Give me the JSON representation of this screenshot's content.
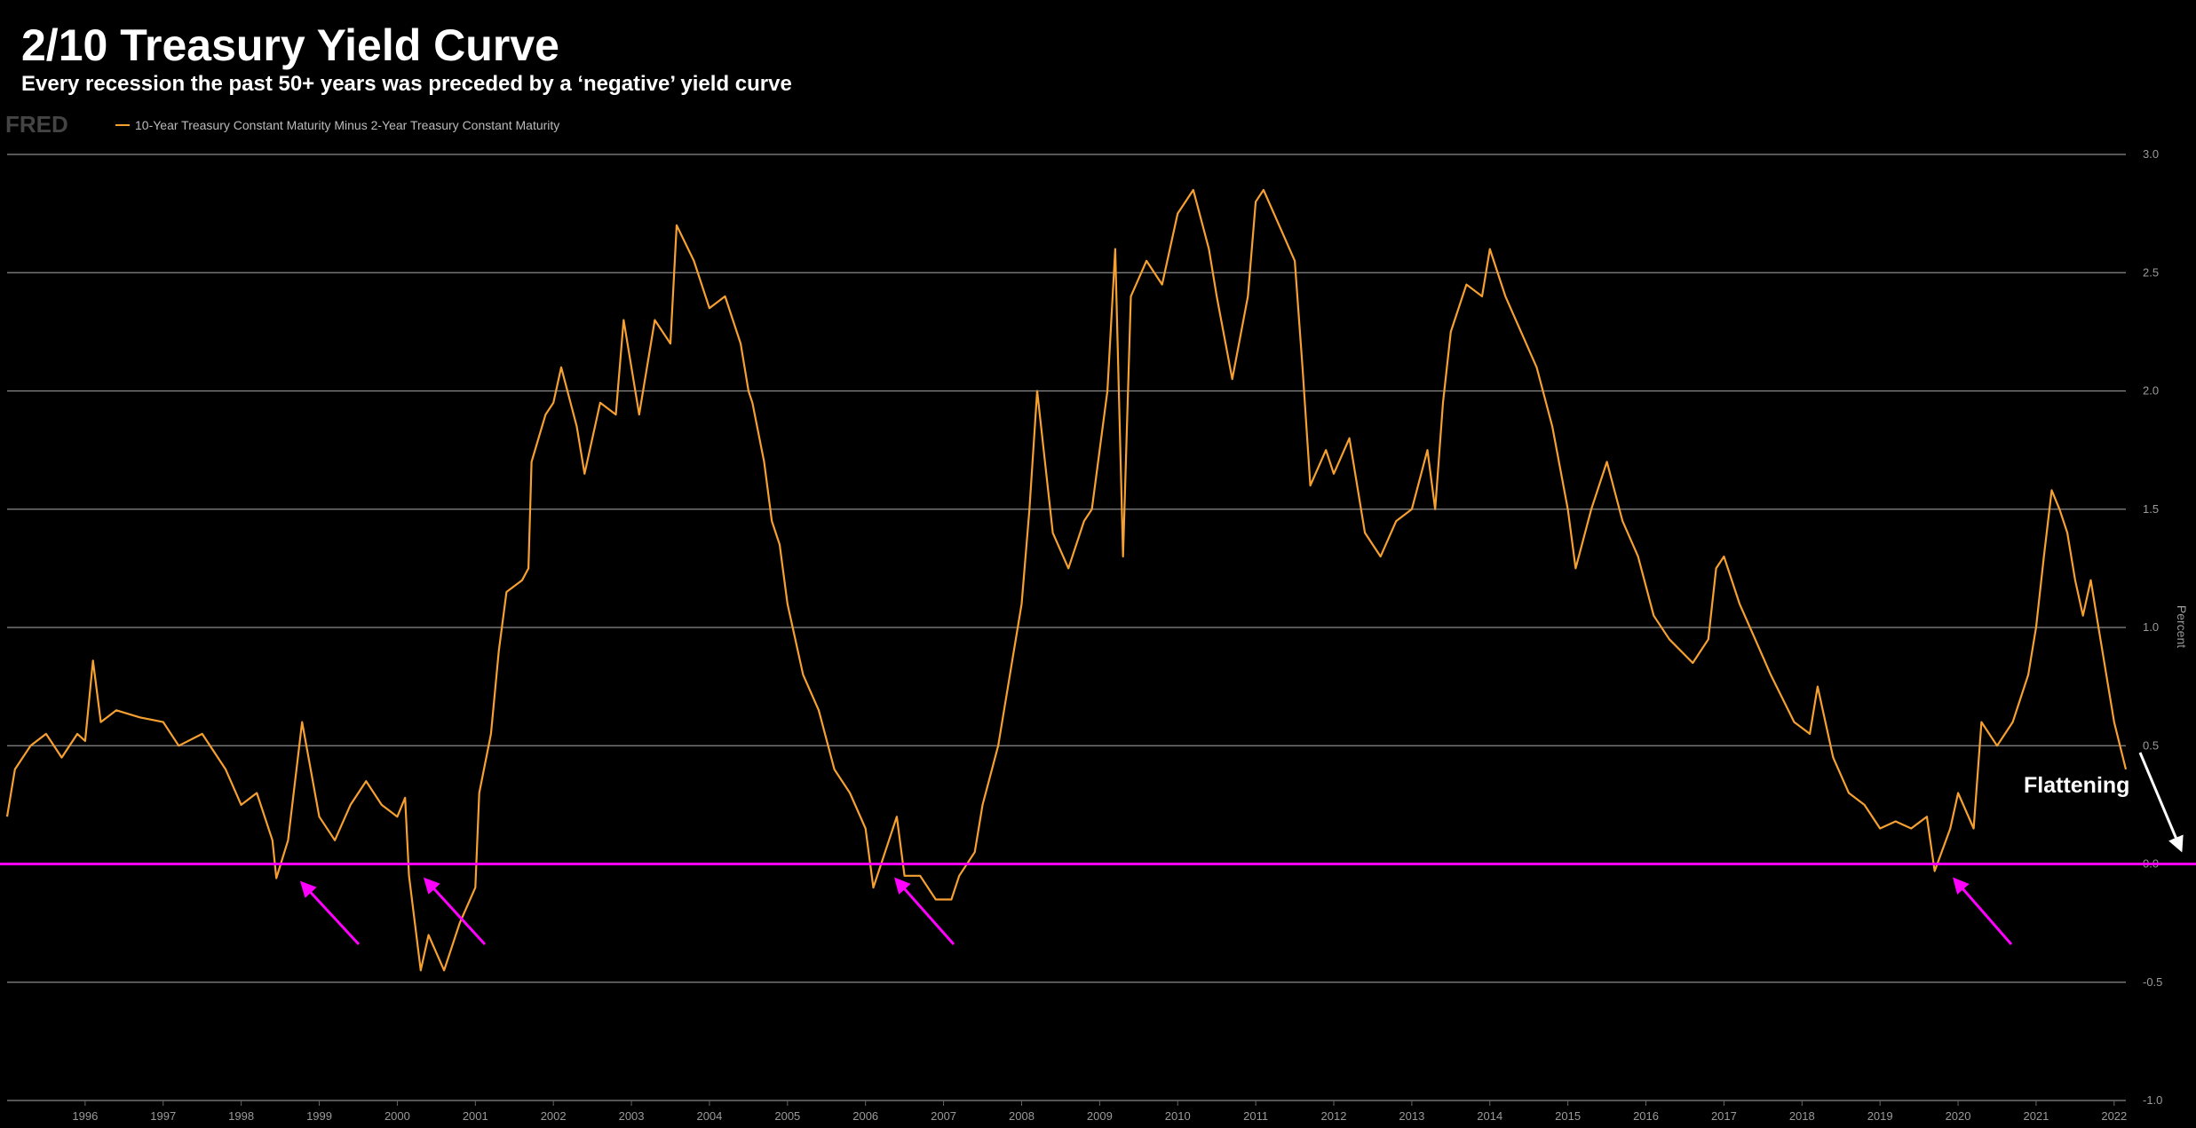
{
  "chart_data": {
    "type": "line",
    "title": "2/10 Treasury Yield Curve",
    "subtitle": "Every recession the past 50+ years was preceded by a ‘negative’ yield curve",
    "source_logo": "FRED",
    "y_label": "Percent",
    "annotation": "Flattening",
    "xlim": [
      1995.0,
      2022.15
    ],
    "xticks": [
      1996,
      1997,
      1998,
      1999,
      2000,
      2001,
      2002,
      2003,
      2004,
      2005,
      2006,
      2007,
      2008,
      2009,
      2010,
      2011,
      2012,
      2013,
      2014,
      2015,
      2016,
      2017,
      2018,
      2019,
      2020,
      2021,
      2022
    ],
    "ylim": [
      -1.0,
      3.0
    ],
    "yticks": [
      {
        "value": 3,
        "label": "3.0"
      },
      2.5,
      {
        "value": 2,
        "label": "2.0"
      },
      1.5,
      {
        "value": 1,
        "label": "1.0"
      },
      0.5,
      {
        "value": 0,
        "label": "0.0"
      },
      -0.5,
      {
        "value": -1,
        "label": "-1.0"
      }
    ],
    "grid": true,
    "reference_line": {
      "value": 0,
      "color": "#ff00ff"
    },
    "x": [
      1995.0,
      1995.1,
      1995.3,
      1995.5,
      1995.7,
      1995.9,
      1996.0,
      1996.1,
      1996.2,
      1996.4,
      1996.7,
      1997.0,
      1997.2,
      1997.5,
      1997.8,
      1998.0,
      1998.2,
      1998.4,
      1998.45,
      1998.6,
      1998.78,
      1999.0,
      1999.2,
      1999.4,
      1999.6,
      1999.8,
      2000.0,
      2000.1,
      2000.15,
      2000.3,
      2000.4,
      2000.6,
      2000.8,
      2001.0,
      2001.05,
      2001.2,
      2001.3,
      2001.4,
      2001.6,
      2001.68,
      2001.72,
      2001.9,
      2002.0,
      2002.1,
      2002.3,
      2002.4,
      2002.6,
      2002.8,
      2002.9,
      2003.1,
      2003.3,
      2003.5,
      2003.58,
      2003.8,
      2004.0,
      2004.2,
      2004.4,
      2004.5,
      2004.55,
      2004.7,
      2004.8,
      2004.9,
      2005.0,
      2005.2,
      2005.4,
      2005.6,
      2005.8,
      2006.0,
      2006.1,
      2006.3,
      2006.4,
      2006.5,
      2006.7,
      2006.9,
      2007.1,
      2007.2,
      2007.4,
      2007.5,
      2007.7,
      2007.9,
      2008.0,
      2008.1,
      2008.2,
      2008.4,
      2008.6,
      2008.8,
      2008.9,
      2009.1,
      2009.2,
      2009.3,
      2009.4,
      2009.6,
      2009.8,
      2010.0,
      2010.2,
      2010.4,
      2010.5,
      2010.7,
      2010.9,
      2011.0,
      2011.1,
      2011.3,
      2011.5,
      2011.6,
      2011.7,
      2011.9,
      2012.0,
      2012.2,
      2012.4,
      2012.6,
      2012.8,
      2013.0,
      2013.2,
      2013.3,
      2013.4,
      2013.5,
      2013.7,
      2013.9,
      2014.0,
      2014.2,
      2014.4,
      2014.6,
      2014.8,
      2015.0,
      2015.1,
      2015.3,
      2015.5,
      2015.7,
      2015.9,
      2016.1,
      2016.3,
      2016.6,
      2016.8,
      2016.9,
      2017.0,
      2017.2,
      2017.4,
      2017.6,
      2017.9,
      2018.1,
      2018.2,
      2018.4,
      2018.6,
      2018.8,
      2019.0,
      2019.2,
      2019.4,
      2019.6,
      2019.7,
      2019.9,
      2020.0,
      2020.2,
      2020.3,
      2020.5,
      2020.7,
      2020.9,
      2021.0,
      2021.1,
      2021.2,
      2021.3,
      2021.4,
      2021.5,
      2021.6,
      2021.7,
      2021.8,
      2021.9,
      2022.0,
      2022.15
    ],
    "series": [
      {
        "name": "10-Year Treasury Constant Maturity Minus 2-Year Treasury Constant Maturity",
        "color": "#f5a031",
        "values": [
          0.2,
          0.4,
          0.5,
          0.55,
          0.45,
          0.55,
          0.52,
          0.86,
          0.6,
          0.65,
          0.62,
          0.6,
          0.5,
          0.55,
          0.4,
          0.25,
          0.3,
          0.1,
          -0.06,
          0.1,
          0.6,
          0.2,
          0.1,
          0.25,
          0.35,
          0.25,
          0.2,
          0.28,
          -0.05,
          -0.45,
          -0.3,
          -0.45,
          -0.25,
          -0.1,
          0.3,
          0.55,
          0.9,
          1.15,
          1.2,
          1.25,
          1.7,
          1.9,
          1.95,
          2.1,
          1.85,
          1.65,
          1.95,
          1.9,
          2.3,
          1.9,
          2.3,
          2.2,
          2.7,
          2.55,
          2.35,
          2.4,
          2.2,
          2.0,
          1.95,
          1.7,
          1.45,
          1.35,
          1.1,
          0.8,
          0.65,
          0.4,
          0.3,
          0.15,
          -0.1,
          0.1,
          0.2,
          -0.05,
          -0.05,
          -0.15,
          -0.15,
          -0.05,
          0.05,
          0.25,
          0.5,
          0.9,
          1.1,
          1.5,
          2.0,
          1.4,
          1.25,
          1.45,
          1.5,
          2.0,
          2.6,
          1.3,
          2.4,
          2.55,
          2.45,
          2.75,
          2.85,
          2.6,
          2.4,
          2.05,
          2.4,
          2.8,
          2.85,
          2.7,
          2.55,
          2.1,
          1.6,
          1.75,
          1.65,
          1.8,
          1.4,
          1.3,
          1.45,
          1.5,
          1.75,
          1.5,
          1.95,
          2.25,
          2.45,
          2.4,
          2.6,
          2.4,
          2.25,
          2.1,
          1.85,
          1.5,
          1.25,
          1.5,
          1.7,
          1.45,
          1.3,
          1.05,
          0.95,
          0.85,
          0.95,
          1.25,
          1.3,
          1.1,
          0.95,
          0.8,
          0.6,
          0.55,
          0.75,
          0.45,
          0.3,
          0.25,
          0.15,
          0.18,
          0.15,
          0.2,
          -0.03,
          0.15,
          0.3,
          0.15,
          0.6,
          0.5,
          0.6,
          0.8,
          1.0,
          1.3,
          1.58,
          1.5,
          1.4,
          1.2,
          1.05,
          1.2,
          1.0,
          0.8,
          0.6,
          0.4
        ]
      }
    ]
  }
}
